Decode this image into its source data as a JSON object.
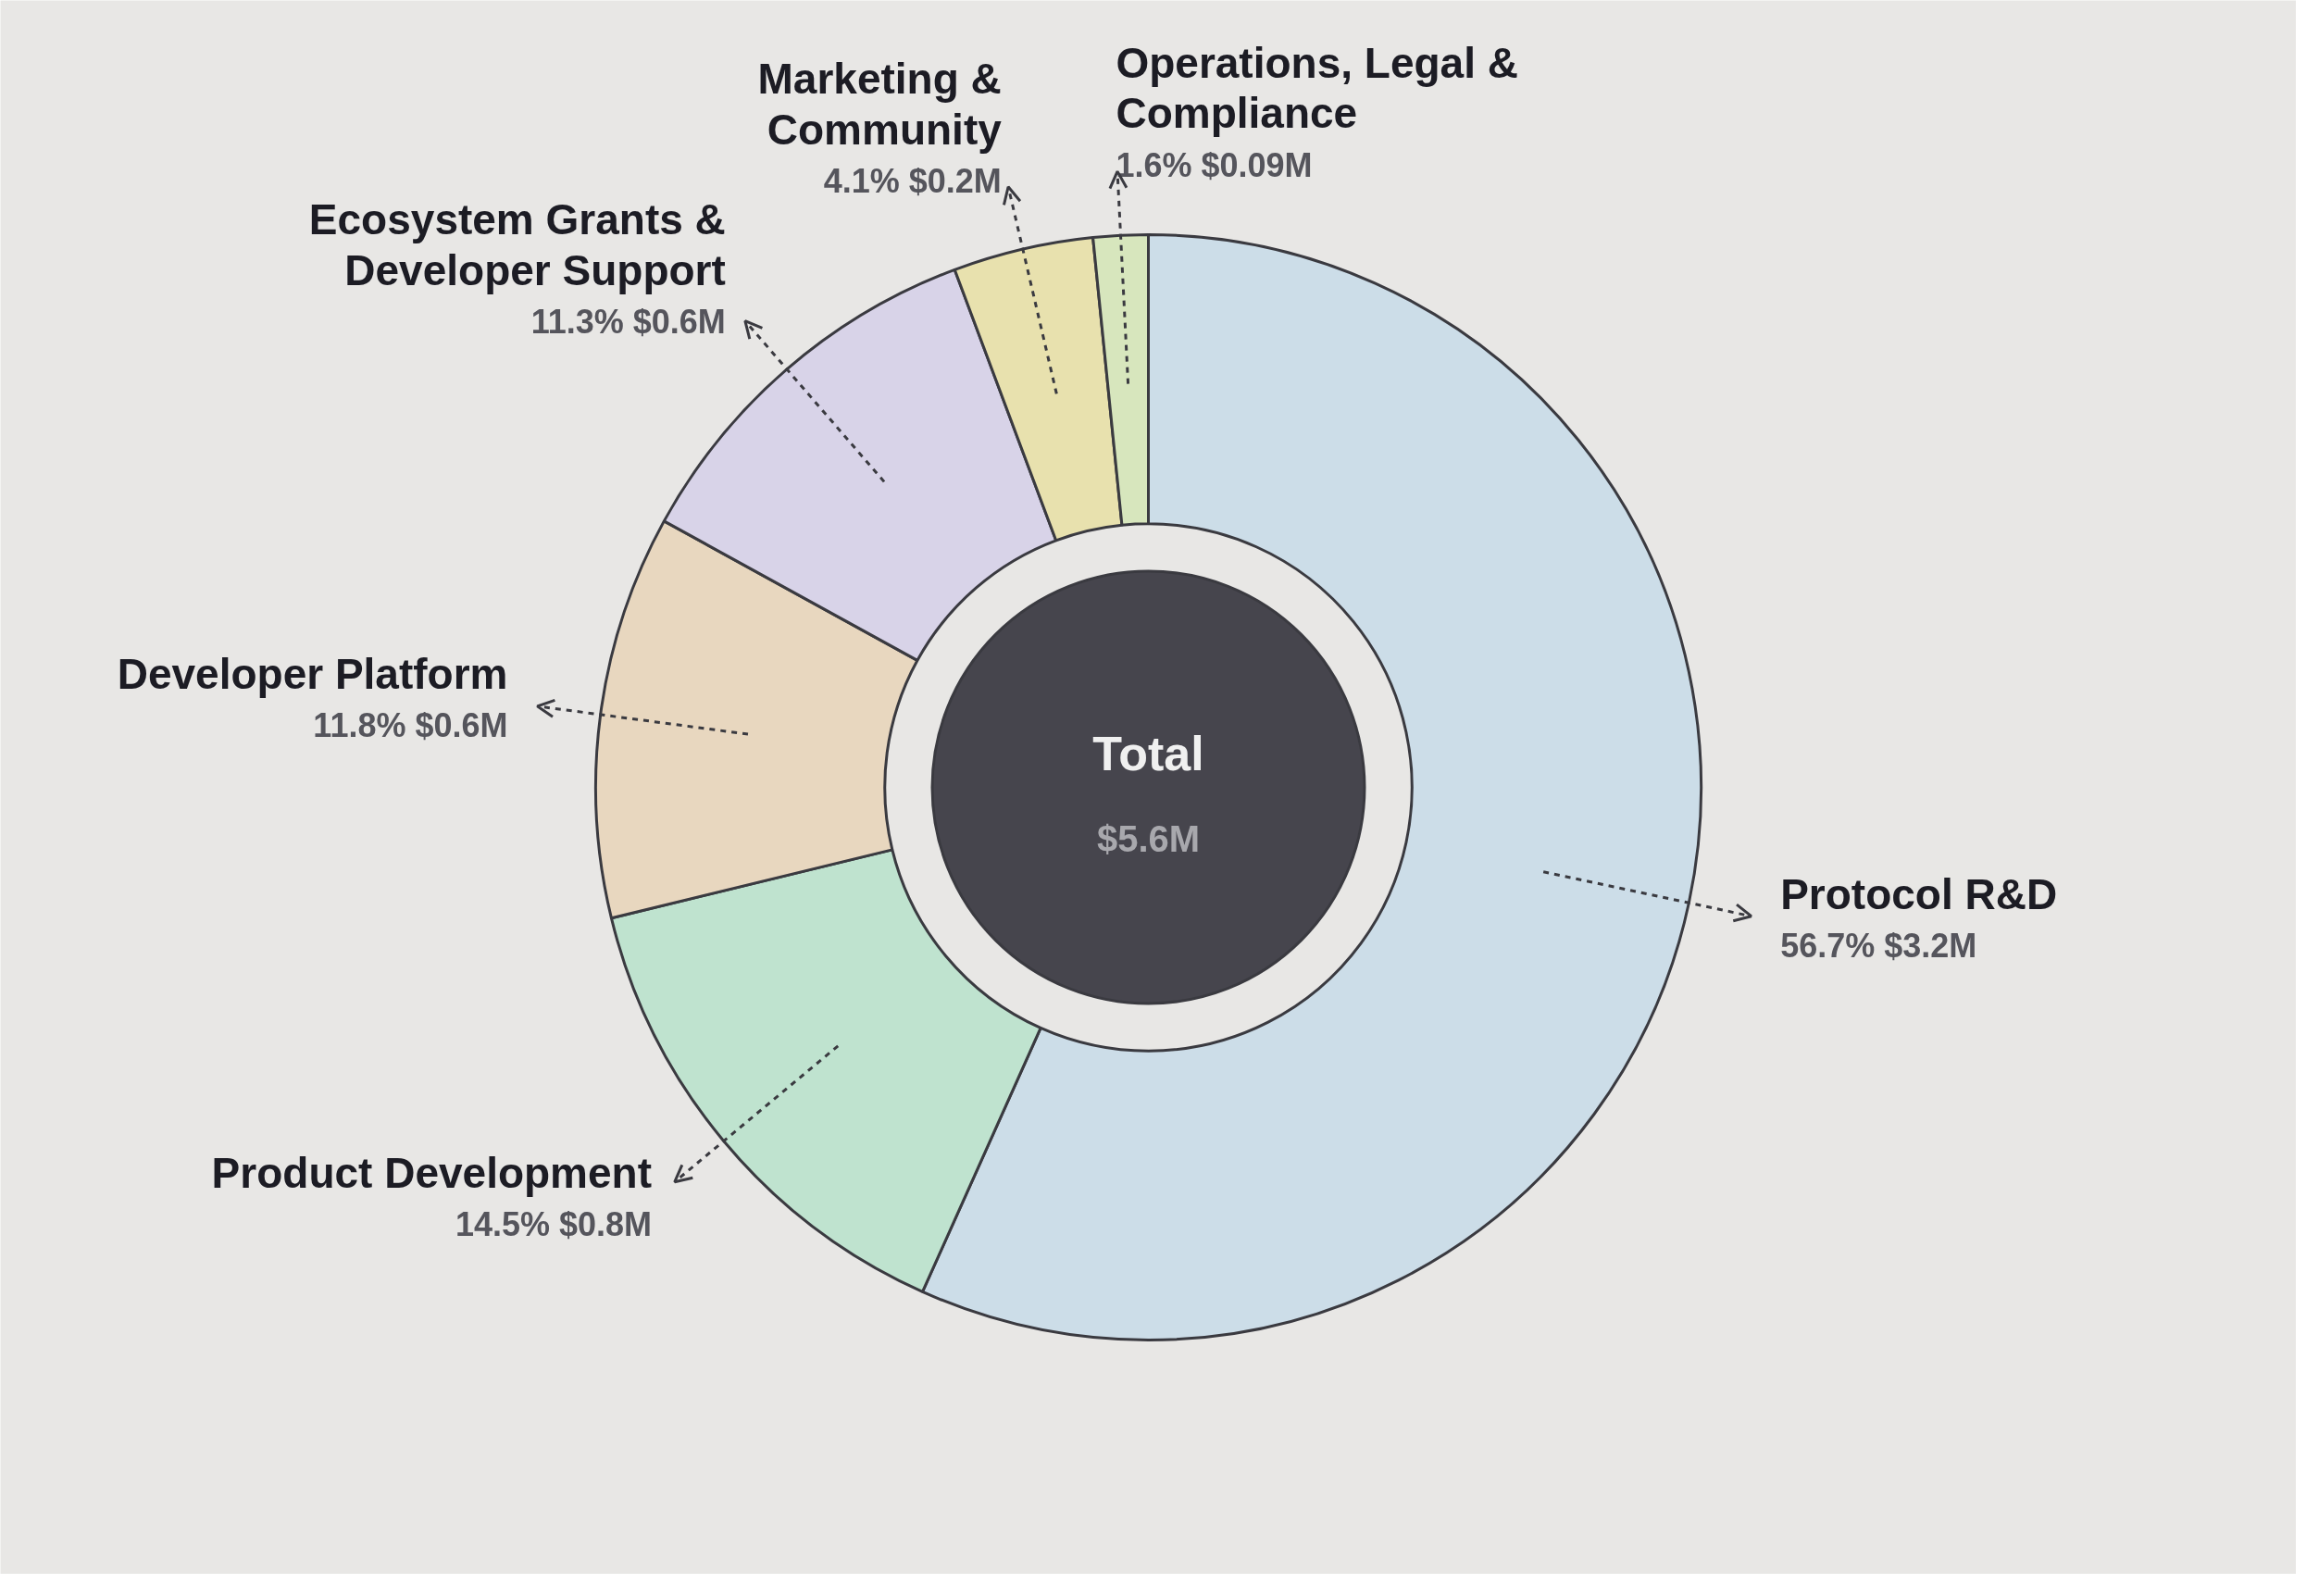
{
  "chart_data": {
    "type": "donut",
    "categories": [
      "Protocol R&D",
      "Product Development",
      "Developer Platform",
      "Ecosystem Grants & Developer Support",
      "Marketing & Community",
      "Operations, Legal & Compliance"
    ],
    "values": [
      56.7,
      14.5,
      11.8,
      11.3,
      4.1,
      1.6
    ],
    "colors": [
      "#ccdde8",
      "#bfe3cf",
      "#e8d7bf",
      "#d8d3e8",
      "#e8e1ae",
      "#d7e6bd"
    ],
    "value_labels": [
      "56.7% $3.2M",
      "14.5% $0.8M",
      "11.8% $0.6M",
      "11.3% $0.6M",
      "4.1% $0.2M",
      "1.6% $0.09M"
    ],
    "annotations": [
      "Total",
      "$5.6M"
    ]
  }
}
